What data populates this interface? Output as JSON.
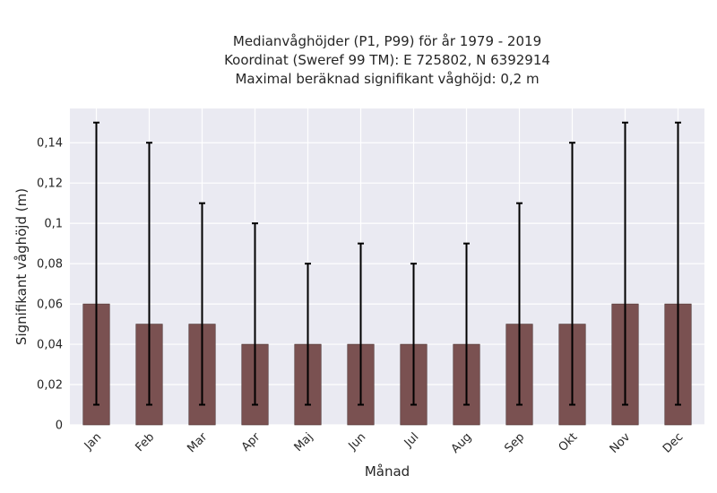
{
  "chart_data": {
    "type": "bar",
    "title_lines": [
      "Medianvåghöjder (P1, P99) för år 1979 - 2019",
      "Koordinat (Sweref 99 TM): E 725802, N 6392914",
      "Maximal beräknad signifikant våghöjd: 0,2 m"
    ],
    "xlabel": "Månad",
    "ylabel": "Signifikant våghöjd (m)",
    "categories": [
      "Jan",
      "Feb",
      "Mar",
      "Apr",
      "Maj",
      "Jun",
      "Jul",
      "Aug",
      "Sep",
      "Okt",
      "Nov",
      "Dec"
    ],
    "values": [
      0.06,
      0.05,
      0.05,
      0.04,
      0.04,
      0.04,
      0.04,
      0.04,
      0.05,
      0.05,
      0.06,
      0.06
    ],
    "p1": [
      0.01,
      0.01,
      0.01,
      0.01,
      0.01,
      0.01,
      0.01,
      0.01,
      0.01,
      0.01,
      0.01,
      0.01
    ],
    "p99": [
      0.15,
      0.14,
      0.11,
      0.1,
      0.08,
      0.09,
      0.08,
      0.09,
      0.11,
      0.14,
      0.15,
      0.15
    ],
    "yticks": [
      "0",
      "0,02",
      "0,04",
      "0,06",
      "0,08",
      "0,1",
      "0,12",
      "0,14"
    ],
    "ylim": [
      0,
      0.157
    ],
    "grid": true,
    "bar_color": "#7a5151",
    "errorbar_color": "#000000",
    "background_color": "#eaeaf2"
  }
}
